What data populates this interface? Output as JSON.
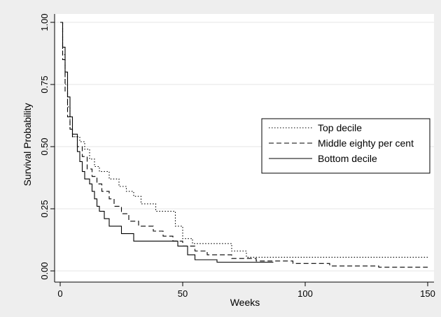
{
  "chart_data": {
    "type": "line",
    "title": "",
    "xlabel": "Weeks",
    "ylabel": "Survival Probability",
    "xlim": [
      0,
      150
    ],
    "ylim": [
      0,
      1
    ],
    "x_ticks": [
      0,
      50,
      100,
      150
    ],
    "x_tick_labels": [
      "0",
      "50",
      "100",
      "150"
    ],
    "y_ticks": [
      0,
      0.25,
      0.5,
      0.75,
      1
    ],
    "y_tick_labels": [
      "0.00",
      "0.25",
      "0.50",
      "0.75",
      "1.00"
    ],
    "grid": true,
    "legend_position": "right-middle",
    "series": [
      {
        "name": "Top decile",
        "style": "dotted",
        "color": "#000000",
        "points": [
          [
            0,
            1.0
          ],
          [
            1,
            1.0
          ],
          [
            1,
            0.87
          ],
          [
            2,
            0.87
          ],
          [
            2,
            0.75
          ],
          [
            3,
            0.75
          ],
          [
            3,
            0.66
          ],
          [
            4,
            0.66
          ],
          [
            4,
            0.57
          ],
          [
            5,
            0.57
          ],
          [
            5,
            0.54
          ],
          [
            8,
            0.54
          ],
          [
            8,
            0.52
          ],
          [
            10,
            0.52
          ],
          [
            10,
            0.49
          ],
          [
            12,
            0.49
          ],
          [
            12,
            0.45
          ],
          [
            14,
            0.45
          ],
          [
            14,
            0.42
          ],
          [
            16,
            0.42
          ],
          [
            16,
            0.4
          ],
          [
            20,
            0.4
          ],
          [
            20,
            0.37
          ],
          [
            24,
            0.37
          ],
          [
            24,
            0.34
          ],
          [
            27,
            0.34
          ],
          [
            27,
            0.32
          ],
          [
            30,
            0.32
          ],
          [
            30,
            0.3
          ],
          [
            33,
            0.3
          ],
          [
            33,
            0.27
          ],
          [
            39,
            0.27
          ],
          [
            39,
            0.24
          ],
          [
            47,
            0.24
          ],
          [
            47,
            0.18
          ],
          [
            50,
            0.18
          ],
          [
            50,
            0.13
          ],
          [
            54,
            0.13
          ],
          [
            54,
            0.11
          ],
          [
            70,
            0.11
          ],
          [
            70,
            0.08
          ],
          [
            76,
            0.08
          ],
          [
            76,
            0.055
          ],
          [
            150,
            0.055
          ]
        ]
      },
      {
        "name": "Middle eighty per cent",
        "style": "dashed",
        "color": "#000000",
        "points": [
          [
            0,
            1.0
          ],
          [
            1,
            1.0
          ],
          [
            1,
            0.85
          ],
          [
            2,
            0.85
          ],
          [
            2,
            0.72
          ],
          [
            3,
            0.72
          ],
          [
            3,
            0.62
          ],
          [
            4,
            0.62
          ],
          [
            4,
            0.57
          ],
          [
            5,
            0.57
          ],
          [
            5,
            0.54
          ],
          [
            7,
            0.54
          ],
          [
            7,
            0.5
          ],
          [
            9,
            0.5
          ],
          [
            9,
            0.46
          ],
          [
            11,
            0.46
          ],
          [
            11,
            0.41
          ],
          [
            13,
            0.41
          ],
          [
            13,
            0.38
          ],
          [
            15,
            0.38
          ],
          [
            15,
            0.35
          ],
          [
            17,
            0.35
          ],
          [
            17,
            0.32
          ],
          [
            20,
            0.32
          ],
          [
            20,
            0.29
          ],
          [
            22,
            0.29
          ],
          [
            22,
            0.26
          ],
          [
            25,
            0.26
          ],
          [
            25,
            0.23
          ],
          [
            28,
            0.23
          ],
          [
            28,
            0.2
          ],
          [
            32,
            0.2
          ],
          [
            32,
            0.18
          ],
          [
            38,
            0.18
          ],
          [
            38,
            0.16
          ],
          [
            42,
            0.16
          ],
          [
            42,
            0.14
          ],
          [
            46,
            0.14
          ],
          [
            46,
            0.12
          ],
          [
            50,
            0.12
          ],
          [
            50,
            0.1
          ],
          [
            55,
            0.1
          ],
          [
            55,
            0.08
          ],
          [
            60,
            0.08
          ],
          [
            60,
            0.065
          ],
          [
            70,
            0.065
          ],
          [
            70,
            0.05
          ],
          [
            80,
            0.05
          ],
          [
            80,
            0.04
          ],
          [
            95,
            0.04
          ],
          [
            95,
            0.03
          ],
          [
            110,
            0.03
          ],
          [
            110,
            0.02
          ],
          [
            130,
            0.02
          ],
          [
            130,
            0.015
          ],
          [
            150,
            0.015
          ]
        ]
      },
      {
        "name": "Bottom decile",
        "style": "solid",
        "color": "#000000",
        "points": [
          [
            0,
            1.0
          ],
          [
            1,
            1.0
          ],
          [
            1,
            0.9
          ],
          [
            2,
            0.9
          ],
          [
            2,
            0.8
          ],
          [
            3,
            0.8
          ],
          [
            3,
            0.7
          ],
          [
            4,
            0.7
          ],
          [
            4,
            0.62
          ],
          [
            5,
            0.62
          ],
          [
            5,
            0.55
          ],
          [
            7,
            0.55
          ],
          [
            7,
            0.48
          ],
          [
            8,
            0.48
          ],
          [
            8,
            0.44
          ],
          [
            9,
            0.44
          ],
          [
            9,
            0.4
          ],
          [
            10,
            0.4
          ],
          [
            10,
            0.37
          ],
          [
            12,
            0.37
          ],
          [
            12,
            0.35
          ],
          [
            13,
            0.35
          ],
          [
            13,
            0.32
          ],
          [
            14,
            0.32
          ],
          [
            14,
            0.29
          ],
          [
            15,
            0.29
          ],
          [
            15,
            0.26
          ],
          [
            16,
            0.26
          ],
          [
            16,
            0.24
          ],
          [
            18,
            0.24
          ],
          [
            18,
            0.21
          ],
          [
            20,
            0.21
          ],
          [
            20,
            0.18
          ],
          [
            25,
            0.18
          ],
          [
            25,
            0.15
          ],
          [
            30,
            0.15
          ],
          [
            30,
            0.12
          ],
          [
            48,
            0.12
          ],
          [
            48,
            0.1
          ],
          [
            52,
            0.1
          ],
          [
            52,
            0.065
          ],
          [
            55,
            0.065
          ],
          [
            55,
            0.045
          ],
          [
            64,
            0.045
          ],
          [
            64,
            0.035
          ],
          [
            87,
            0.035
          ]
        ]
      }
    ]
  }
}
